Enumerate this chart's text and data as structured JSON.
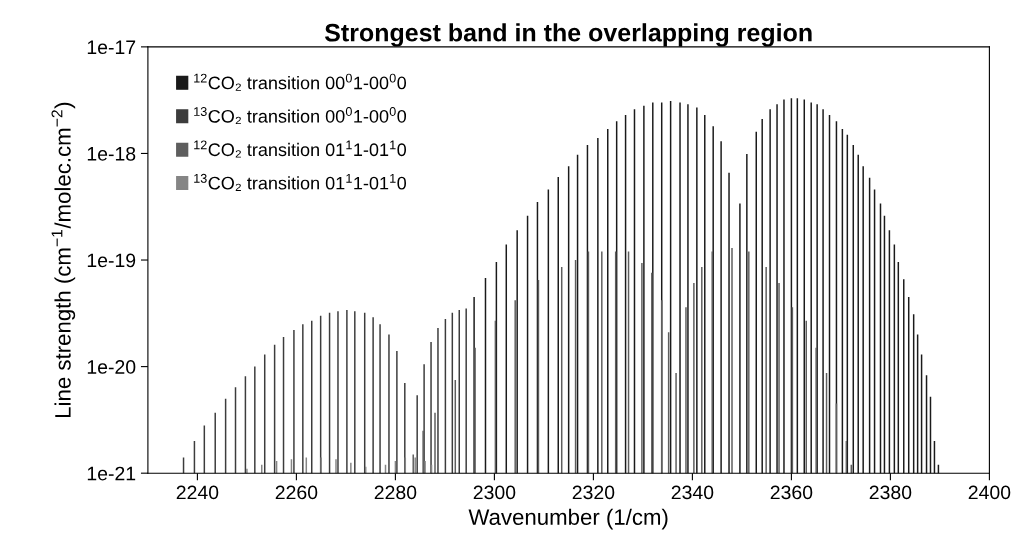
{
  "chart_data": {
    "type": "bar",
    "title": "Strongest band in the overlapping region",
    "xlabel": "Wavenumber (1/cm)",
    "ylabel": "Line strength (cm$^{−1}$/molec.cm$^{−2}$)",
    "log": true,
    "grid": false,
    "legend": "top left",
    "xlim": [
      2230,
      2400
    ],
    "xticks": [
      2240,
      2260,
      2280,
      2300,
      2320,
      2340,
      2360,
      2380,
      2400
    ],
    "ylim": [
      1e-21,
      1e-17
    ],
    "yticks": [
      {
        "value": 1e-21,
        "label": "1e-21"
      },
      {
        "value": 1e-20,
        "label": "1e-20"
      },
      {
        "value": 1e-19,
        "label": "1e-19"
      },
      {
        "value": 1e-18,
        "label": "1e-18"
      },
      {
        "value": 1e-17,
        "label": "1e-17"
      }
    ],
    "series": [
      {
        "name": "$^{12}$CO₂ transition 00$^{0}$1-00$^{0}$0",
        "color": "#1a1a1a",
        "x": [
          2295.9,
          2298.2,
          2300.4,
          2302.4,
          2304.6,
          2306.7,
          2308.7,
          2310.9,
          2312.9,
          2315.0,
          2316.8,
          2318.8,
          2320.9,
          2322.9,
          2324.7,
          2326.5,
          2328.3,
          2330.2,
          2332.0,
          2333.8,
          2335.6,
          2337.5,
          2339.1,
          2340.9,
          2342.5,
          2344.2,
          2345.8,
          2347.4,
          2349.6,
          2351.0,
          2352.9,
          2354.1,
          2355.7,
          2357.1,
          2358.5,
          2360.0,
          2361.2,
          2362.6,
          2364.0,
          2365.2,
          2366.4,
          2367.7,
          2369.1,
          2370.3,
          2371.3,
          2372.5,
          2373.5,
          2374.5,
          2375.8,
          2376.8,
          2378.0,
          2378.8,
          2379.8,
          2380.8,
          2381.6,
          2382.7,
          2383.7,
          2384.7,
          2385.5,
          2386.3,
          2387.3,
          2388.1,
          2388.9,
          2389.7
        ],
        "values": [
          4.5e-20,
          6.8e-20,
          9.6e-20,
          1.4e-19,
          1.9e-19,
          2.6e-19,
          3.5e-19,
          4.6e-19,
          6e-19,
          7.6e-19,
          9.7e-19,
          1.2e-18,
          1.4e-18,
          1.7e-18,
          2e-18,
          2.3e-18,
          2.6e-18,
          2.8e-18,
          3e-18,
          3e-18,
          3.1e-18,
          3e-18,
          2.9e-18,
          2.7e-18,
          2.3e-18,
          1.8e-18,
          1.3e-18,
          6.6e-19,
          3.4e-19,
          9.9e-19,
          1.6e-18,
          2.1e-18,
          2.6e-18,
          2.9e-18,
          3.2e-18,
          3.3e-18,
          3.3e-18,
          3.2e-18,
          3e-18,
          2.9e-18,
          2.6e-18,
          2.3e-18,
          2e-18,
          1.7e-18,
          1.5e-18,
          1.2e-18,
          9.7e-19,
          7.6e-19,
          5.9e-19,
          4.6e-19,
          3.4e-19,
          2.6e-19,
          1.9e-19,
          1.4e-19,
          9.6e-20,
          6.6e-20,
          4.5e-20,
          3.1e-20,
          2e-20,
          1.3e-20,
          8.3e-21,
          5.2e-21,
          2e-21,
          1.2e-21
        ]
      },
      {
        "name": "$^{13}$CO₂ transition 00$^{0}$1-00$^{0}$0",
        "color": "#3c3c3c",
        "x": [
          2237.2,
          2239.4,
          2241.4,
          2243.6,
          2245.7,
          2247.7,
          2249.7,
          2251.6,
          2253.6,
          2255.6,
          2257.4,
          2259.5,
          2261.3,
          2263.1,
          2264.9,
          2266.7,
          2268.4,
          2270.2,
          2271.8,
          2273.8,
          2275.5,
          2276.9,
          2278.7,
          2280.3,
          2281.9,
          2284.4,
          2285.8,
          2287.2,
          2288.6,
          2290.1,
          2291.5,
          2292.9,
          2294.3
        ],
        "values": [
          1.4e-21,
          2e-21,
          2.8e-21,
          3.7e-21,
          5e-21,
          6.4e-21,
          8.1e-21,
          1e-20,
          1.3e-20,
          1.6e-20,
          1.9e-20,
          2.2e-20,
          2.5e-20,
          2.7e-20,
          3e-20,
          3.2e-20,
          3.3e-20,
          3.4e-20,
          3.3e-20,
          3.2e-20,
          2.9e-20,
          2.5e-20,
          2e-20,
          1.4e-20,
          7e-21,
          5.4e-21,
          1.05e-20,
          1.7e-20,
          2.3e-20,
          2.8e-20,
          3.2e-20,
          3.4e-20,
          3.5e-20
        ]
      },
      {
        "name": "$^{12}$CO₂ transition 01$^{1}$1-01$^{1}$0",
        "color": "#5e5e5e",
        "x": [
          2283.6,
          2285.6,
          2288.0,
          2292.1,
          2296.1,
          2300.2,
          2304.2,
          2308.9,
          2313.6,
          2316.4,
          2319.0,
          2321.7,
          2324.5,
          2327.1,
          2329.8,
          2331.8,
          2333.8,
          2335.2,
          2336.7,
          2338.7,
          2340.3,
          2341.9,
          2344.0,
          2348.0,
          2351.4,
          2354.9,
          2357.5,
          2360.2,
          2363.0,
          2365.0,
          2367.1,
          2369.1,
          2371.1,
          2372.1
        ],
        "values": [
          1.5e-21,
          2.5e-21,
          3.7e-21,
          7.5e-21,
          1.5e-20,
          2.7e-20,
          4.2e-20,
          6.5e-20,
          8.6e-20,
          1e-19,
          1.2e-19,
          1.2e-19,
          1.2e-19,
          1.2e-19,
          9.4e-20,
          7.6e-20,
          4.2e-20,
          2.1e-20,
          8.7e-21,
          3.6e-20,
          6.1e-20,
          8.6e-20,
          1.2e-19,
          1.3e-19,
          1.2e-19,
          8.6e-20,
          6.1e-20,
          3.6e-20,
          2.7e-20,
          1.5e-20,
          8.7e-21,
          4.5e-21,
          2e-21,
          1.2e-21
        ]
      },
      {
        "name": "$^{13}$CO₂ transition 01$^{1}$1-01$^{1}$0",
        "color": "#858585",
        "x": [
          2250.0,
          2253.0,
          2256.0,
          2259.0,
          2262.0,
          2265.0,
          2268.0,
          2271.0,
          2274.0,
          2278.0,
          2280.0,
          2282.0,
          2284.0,
          2286.0,
          2287.3
        ],
        "values": [
          1.1e-21,
          1.2e-21,
          1.3e-21,
          1.35e-21,
          1.4e-21,
          1.4e-21,
          1.35e-21,
          1.25e-21,
          1.15e-21,
          1.2e-21,
          1.3e-21,
          1.4e-21,
          1.4e-21,
          1.3e-21,
          1.2e-21
        ]
      }
    ]
  }
}
